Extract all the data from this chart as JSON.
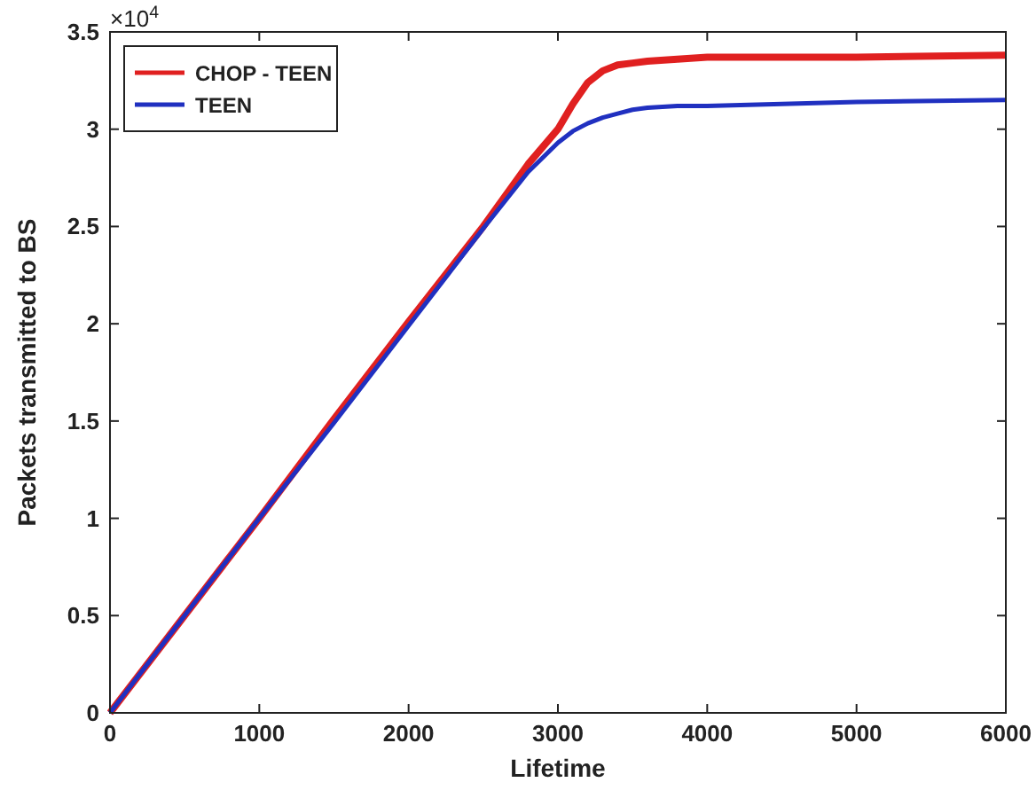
{
  "chart_data": {
    "type": "line",
    "xlabel": "Lifetime",
    "ylabel": "Packets transmitted to BS",
    "xlim": [
      0,
      6000
    ],
    "xticks": [
      0,
      1000,
      2000,
      3000,
      4000,
      5000,
      6000
    ],
    "ylim": [
      0,
      3.5
    ],
    "yticks": [
      0,
      0.5,
      1,
      1.5,
      2,
      2.5,
      3,
      3.5
    ],
    "annotations": [
      "×10$^{4}$"
    ],
    "legend": "top left",
    "grid": false,
    "series": [
      {
        "name": "CHOP - TEEN",
        "color": "#e02020",
        "x": [
          0,
          500,
          1000,
          1500,
          2000,
          2500,
          2800,
          3000,
          3100,
          3200,
          3300,
          3400,
          3500,
          3600,
          3800,
          4000,
          5000,
          6000
        ],
        "values": [
          0,
          0.5,
          1,
          1.51,
          2.01,
          2.5,
          2.82,
          3,
          3.13,
          3.24,
          3.3,
          3.33,
          3.34,
          3.35,
          3.36,
          3.37,
          3.37,
          3.38
        ]
      },
      {
        "name": "TEEN",
        "color": "#2030c0",
        "x": [
          0,
          500,
          1000,
          1500,
          2000,
          2500,
          2800,
          3000,
          3100,
          3200,
          3300,
          3400,
          3500,
          3600,
          3800,
          4000,
          5000,
          6000
        ],
        "values": [
          0,
          0.5,
          1,
          1.49,
          1.99,
          2.49,
          2.78,
          2.93,
          2.99,
          3.03,
          3.06,
          3.08,
          3.1,
          3.11,
          3.12,
          3.12,
          3.14,
          3.15
        ]
      }
    ]
  }
}
